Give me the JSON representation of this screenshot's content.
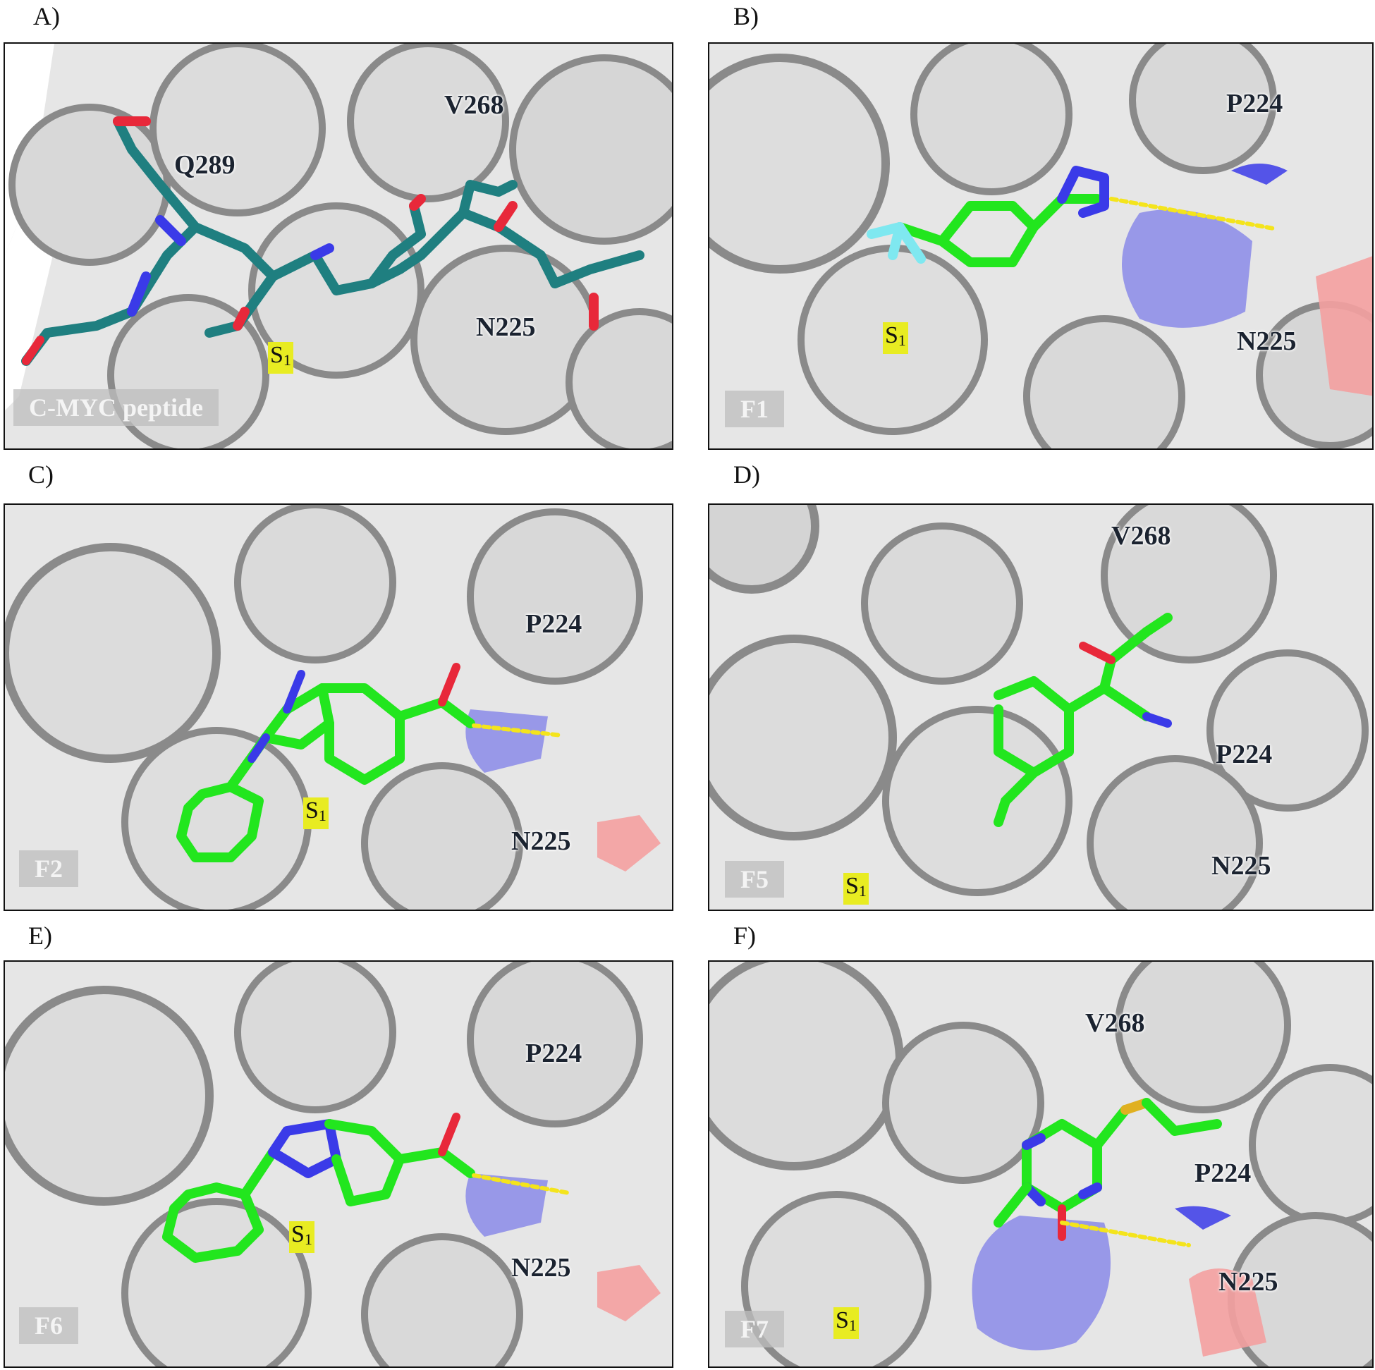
{
  "panels": [
    {
      "letter": "A)",
      "name": "C-MYC peptide",
      "residues": [
        "Q289",
        "V268",
        "N225"
      ],
      "pocket": "S",
      "pocket_sub": "1"
    },
    {
      "letter": "B)",
      "name": "F1",
      "residues": [
        "P224",
        "N225"
      ],
      "pocket": "S",
      "pocket_sub": "1"
    },
    {
      "letter": "C)",
      "name": "F2",
      "residues": [
        "P224",
        "N225"
      ],
      "pocket": "S",
      "pocket_sub": "1"
    },
    {
      "letter": "D)",
      "name": "F5",
      "residues": [
        "V268",
        "P224",
        "N225"
      ],
      "pocket": "S",
      "pocket_sub": "1"
    },
    {
      "letter": "E)",
      "name": "F6",
      "residues": [
        "P224",
        "N225"
      ],
      "pocket": "S",
      "pocket_sub": "1"
    },
    {
      "letter": "F)",
      "name": "F7",
      "residues": [
        "V268",
        "P224",
        "N225"
      ],
      "pocket": "S",
      "pocket_sub": "1"
    }
  ],
  "colors": {
    "surface": "#e6e6e6",
    "surface_shadow": "#8a8a8a",
    "peptide_carbon": "#1f7f80",
    "ligand_carbon": "#22e61e",
    "nitrogen": "#3a3ae8",
    "oxygen": "#e8283a",
    "fluorine": "#7fe8f0",
    "sulfur": "#e0b020",
    "hbond": "#f4e41c",
    "pocket_highlight": "#e8ec22"
  }
}
